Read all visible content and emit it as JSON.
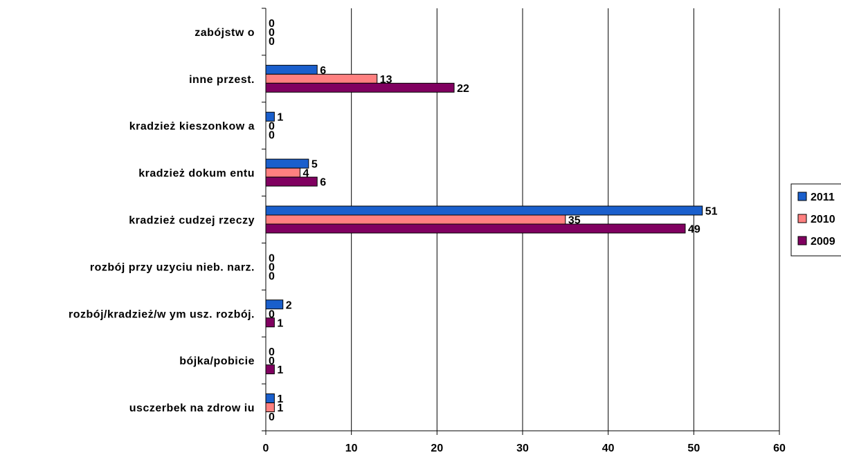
{
  "chart_data": {
    "type": "bar",
    "orientation": "horizontal",
    "categories": [
      "zabójstw o",
      "inne przest.",
      "kradzież kieszonkow a",
      "kradzież dokum entu",
      "kradzież cudzej rzeczy",
      "rozbój przy uzyciu nieb. narz.",
      "rozbój/kradzież/w ym usz. rozbój.",
      "bójka/pobicie",
      "usczerbek na zdrow iu"
    ],
    "series": [
      {
        "name": "2011",
        "color": "#1a5fcc",
        "values": [
          0,
          6,
          1,
          5,
          51,
          0,
          2,
          0,
          1
        ]
      },
      {
        "name": "2010",
        "color": "#ff8080",
        "values": [
          0,
          13,
          0,
          4,
          35,
          0,
          0,
          0,
          1
        ]
      },
      {
        "name": "2009",
        "color": "#800060",
        "values": [
          0,
          22,
          0,
          6,
          49,
          0,
          1,
          1,
          0
        ]
      }
    ],
    "xlim": [
      0,
      60
    ],
    "xticks": [
      0,
      10,
      20,
      30,
      40,
      50,
      60
    ],
    "grid": "vertical",
    "legend_position": "right",
    "title": "",
    "xlabel": "",
    "ylabel": ""
  }
}
